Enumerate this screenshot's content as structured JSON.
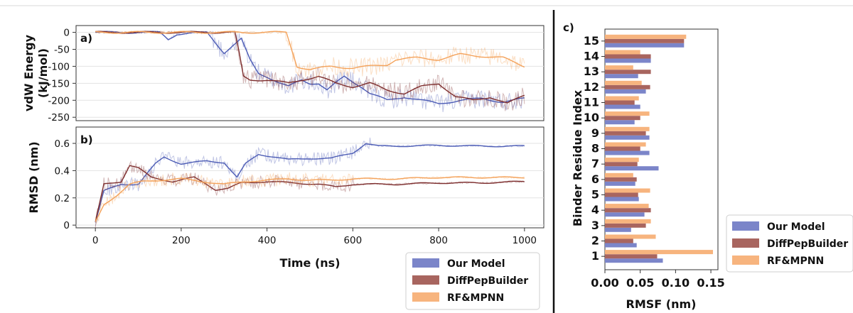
{
  "chart_data": [
    {
      "panel_label": "a)",
      "type": "line",
      "ylabel_lines": [
        "vdW Energy",
        "(kJ/mol)"
      ],
      "xlim": [
        0,
        1000
      ],
      "ylim": [
        -260,
        20
      ],
      "yticks": [
        0,
        -50,
        -100,
        -150,
        -200,
        -250
      ],
      "grid": true,
      "series": [
        {
          "name": "Our Model",
          "color": "#4c5cb5",
          "keyframes": [
            [
              0,
              0
            ],
            [
              150,
              0
            ],
            [
              170,
              -20
            ],
            [
              190,
              -5
            ],
            [
              260,
              0
            ],
            [
              280,
              -30
            ],
            [
              300,
              -60
            ],
            [
              320,
              -40
            ],
            [
              340,
              -20
            ],
            [
              360,
              -80
            ],
            [
              380,
              -120
            ],
            [
              400,
              -130
            ],
            [
              430,
              -150
            ],
            [
              450,
              -160
            ],
            [
              480,
              -140
            ],
            [
              500,
              -150
            ],
            [
              520,
              -150
            ],
            [
              540,
              -170
            ],
            [
              560,
              -150
            ],
            [
              580,
              -130
            ],
            [
              600,
              -145
            ],
            [
              620,
              -160
            ],
            [
              640,
              -180
            ],
            [
              680,
              -200
            ],
            [
              720,
              -190
            ],
            [
              760,
              -200
            ],
            [
              800,
              -210
            ],
            [
              850,
              -200
            ],
            [
              900,
              -195
            ],
            [
              950,
              -205
            ],
            [
              1000,
              -195
            ]
          ]
        },
        {
          "name": "DiffPepBuilder",
          "color": "#7d2e2e",
          "keyframes": [
            [
              0,
              0
            ],
            [
              325,
              0
            ],
            [
              335,
              -60
            ],
            [
              345,
              -130
            ],
            [
              360,
              -140
            ],
            [
              400,
              -140
            ],
            [
              450,
              -150
            ],
            [
              480,
              -140
            ],
            [
              520,
              -130
            ],
            [
              560,
              -150
            ],
            [
              600,
              -160
            ],
            [
              640,
              -150
            ],
            [
              680,
              -170
            ],
            [
              720,
              -180
            ],
            [
              760,
              -160
            ],
            [
              800,
              -150
            ],
            [
              840,
              -190
            ],
            [
              880,
              -200
            ],
            [
              920,
              -190
            ],
            [
              960,
              -210
            ],
            [
              1000,
              -185
            ]
          ]
        },
        {
          "name": "RF&MPNN",
          "color": "#f4a25a",
          "keyframes": [
            [
              0,
              0
            ],
            [
              445,
              0
            ],
            [
              470,
              -100
            ],
            [
              500,
              -110
            ],
            [
              550,
              -100
            ],
            [
              600,
              -105
            ],
            [
              640,
              -100
            ],
            [
              680,
              -95
            ],
            [
              700,
              -80
            ],
            [
              750,
              -75
            ],
            [
              800,
              -80
            ],
            [
              850,
              -65
            ],
            [
              900,
              -70
            ],
            [
              950,
              -75
            ],
            [
              1000,
              -100
            ]
          ]
        }
      ]
    },
    {
      "panel_label": "b)",
      "type": "line",
      "xlabel": "Time (ns)",
      "ylabel": "RMSD (nm)",
      "xlim": [
        0,
        1000
      ],
      "ylim": [
        -0.02,
        0.72
      ],
      "xticks": [
        0,
        200,
        400,
        600,
        800,
        1000
      ],
      "yticks": [
        0,
        0.2,
        0.4,
        0.6
      ],
      "grid": true,
      "legend": "bottom-right outside",
      "series": [
        {
          "name": "Our Model",
          "color": "#4c5cb5",
          "keyframes": [
            [
              0,
              0.02
            ],
            [
              20,
              0.25
            ],
            [
              60,
              0.3
            ],
            [
              100,
              0.3
            ],
            [
              140,
              0.45
            ],
            [
              160,
              0.5
            ],
            [
              200,
              0.45
            ],
            [
              260,
              0.47
            ],
            [
              300,
              0.46
            ],
            [
              330,
              0.35
            ],
            [
              350,
              0.45
            ],
            [
              380,
              0.52
            ],
            [
              420,
              0.5
            ],
            [
              450,
              0.48
            ],
            [
              500,
              0.49
            ],
            [
              550,
              0.49
            ],
            [
              600,
              0.53
            ],
            [
              630,
              0.6
            ],
            [
              660,
              0.58
            ],
            [
              700,
              0.58
            ],
            [
              800,
              0.585
            ],
            [
              900,
              0.58
            ],
            [
              1000,
              0.58
            ]
          ]
        },
        {
          "name": "DiffPepBuilder",
          "color": "#7d2e2e",
          "keyframes": [
            [
              0,
              0.02
            ],
            [
              20,
              0.3
            ],
            [
              60,
              0.32
            ],
            [
              80,
              0.44
            ],
            [
              100,
              0.42
            ],
            [
              130,
              0.35
            ],
            [
              180,
              0.32
            ],
            [
              230,
              0.35
            ],
            [
              260,
              0.3
            ],
            [
              280,
              0.26
            ],
            [
              310,
              0.27
            ],
            [
              340,
              0.31
            ],
            [
              400,
              0.32
            ],
            [
              460,
              0.31
            ],
            [
              520,
              0.3
            ],
            [
              560,
              0.28
            ],
            [
              600,
              0.3
            ],
            [
              700,
              0.3
            ],
            [
              800,
              0.31
            ],
            [
              900,
              0.31
            ],
            [
              1000,
              0.32
            ]
          ]
        },
        {
          "name": "RF&MPNN",
          "color": "#f4a25a",
          "keyframes": [
            [
              0,
              0.02
            ],
            [
              20,
              0.15
            ],
            [
              50,
              0.22
            ],
            [
              80,
              0.3
            ],
            [
              110,
              0.32
            ],
            [
              150,
              0.33
            ],
            [
              200,
              0.34
            ],
            [
              250,
              0.32
            ],
            [
              300,
              0.3
            ],
            [
              350,
              0.32
            ],
            [
              400,
              0.33
            ],
            [
              450,
              0.34
            ],
            [
              500,
              0.33
            ],
            [
              550,
              0.33
            ],
            [
              600,
              0.34
            ],
            [
              700,
              0.34
            ],
            [
              800,
              0.35
            ],
            [
              900,
              0.35
            ],
            [
              1000,
              0.35
            ]
          ]
        }
      ]
    },
    {
      "panel_label": "c)",
      "type": "bar",
      "orientation": "horizontal",
      "xlabel": "RMSF (nm)",
      "ylabel": "Binder Residue Index",
      "xlim": [
        0,
        0.16
      ],
      "xticks": [
        0.0,
        0.05,
        0.1,
        0.15
      ],
      "xtick_labels": [
        "0.00",
        "0.05",
        "0.10",
        "0.15"
      ],
      "categories": [
        "1",
        "2",
        "3",
        "4",
        "5",
        "6",
        "7",
        "8",
        "9",
        "10",
        "11",
        "12",
        "13",
        "14",
        "15"
      ],
      "series": [
        {
          "name": "Our Model",
          "color": "#7b85c9",
          "values": [
            0.082,
            0.045,
            0.037,
            0.056,
            0.048,
            0.043,
            0.076,
            0.063,
            0.063,
            0.042,
            0.05,
            0.058,
            0.047,
            0.065,
            0.112
          ]
        },
        {
          "name": "DiffPepBuilder",
          "color": "#a8655f",
          "values": [
            0.074,
            0.04,
            0.058,
            0.065,
            0.047,
            0.045,
            0.046,
            0.05,
            0.058,
            0.05,
            0.042,
            0.064,
            0.065,
            0.065,
            0.112
          ]
        },
        {
          "name": "RF&MPNN",
          "color": "#f7b47e",
          "values": [
            0.153,
            0.072,
            0.065,
            0.062,
            0.064,
            0.04,
            0.048,
            0.058,
            0.063,
            0.063,
            0.048,
            0.052,
            0.04,
            0.05,
            0.115
          ]
        }
      ]
    }
  ],
  "legends": {
    "left": [
      {
        "label": "Our Model",
        "color": "#7b85c9"
      },
      {
        "label": "DiffPepBuilder",
        "color": "#a8655f"
      },
      {
        "label": "RF&MPNN",
        "color": "#f7b47e"
      }
    ],
    "right": [
      {
        "label": "Our Model",
        "color": "#7b85c9"
      },
      {
        "label": "DiffPepBuilder",
        "color": "#a8655f"
      },
      {
        "label": "RF&MPNN",
        "color": "#f7b47e"
      }
    ]
  }
}
